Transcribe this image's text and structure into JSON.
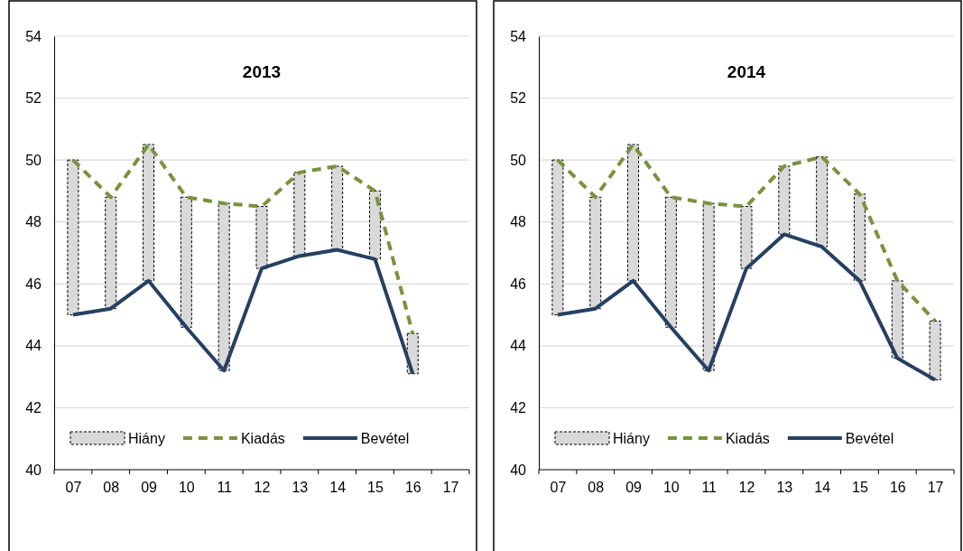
{
  "chart_data": [
    {
      "type": "line",
      "title": "2013",
      "categories": [
        "07",
        "08",
        "09",
        "10",
        "11",
        "12",
        "13",
        "14",
        "15",
        "16",
        "17"
      ],
      "ylim": [
        40,
        54
      ],
      "yticks": [
        40,
        42,
        44,
        46,
        48,
        50,
        52,
        54
      ],
      "legend": "bottom",
      "grid": "y",
      "series": [
        {
          "name": "Hiány",
          "type": "bar",
          "color": "#d9d9d9",
          "values": [
            5.0,
            3.6,
            4.4,
            4.2,
            5.4,
            2.0,
            2.7,
            2.7,
            2.2,
            1.3,
            null
          ],
          "base": [
            45.0,
            45.2,
            46.1,
            44.6,
            43.2,
            46.5,
            46.9,
            47.1,
            46.8,
            43.1,
            null
          ]
        },
        {
          "name": "Kiadás",
          "color": "#77933c",
          "line_style": "dashed",
          "values": [
            50.0,
            48.8,
            50.5,
            48.8,
            48.6,
            48.5,
            49.6,
            49.8,
            49.0,
            44.4,
            null
          ]
        },
        {
          "name": "Bevétel",
          "color": "#254061",
          "line_style": "solid",
          "values": [
            45.0,
            45.2,
            46.1,
            44.6,
            43.2,
            46.5,
            46.9,
            47.1,
            46.8,
            43.1,
            null
          ]
        }
      ]
    },
    {
      "type": "line",
      "title": "2014",
      "categories": [
        "07",
        "08",
        "09",
        "10",
        "11",
        "12",
        "13",
        "14",
        "15",
        "16",
        "17"
      ],
      "ylim": [
        40,
        54
      ],
      "yticks": [
        40,
        42,
        44,
        46,
        48,
        50,
        52,
        54
      ],
      "legend": "bottom",
      "grid": "y",
      "series": [
        {
          "name": "Hiány",
          "type": "bar",
          "color": "#d9d9d9",
          "values": [
            5.0,
            3.6,
            4.4,
            4.2,
            5.4,
            2.0,
            2.2,
            2.9,
            2.8,
            2.5,
            1.9
          ],
          "base": [
            45.0,
            45.2,
            46.1,
            44.6,
            43.2,
            46.5,
            47.6,
            47.2,
            46.1,
            43.6,
            42.9
          ]
        },
        {
          "name": "Kiadás",
          "color": "#77933c",
          "line_style": "dashed",
          "values": [
            50.0,
            48.8,
            50.5,
            48.8,
            48.6,
            48.5,
            49.8,
            50.1,
            48.9,
            46.1,
            44.8
          ]
        },
        {
          "name": "Bevétel",
          "color": "#254061",
          "line_style": "solid",
          "values": [
            45.0,
            45.2,
            46.1,
            44.6,
            43.2,
            46.5,
            47.6,
            47.2,
            46.1,
            43.6,
            42.9
          ]
        }
      ]
    }
  ]
}
